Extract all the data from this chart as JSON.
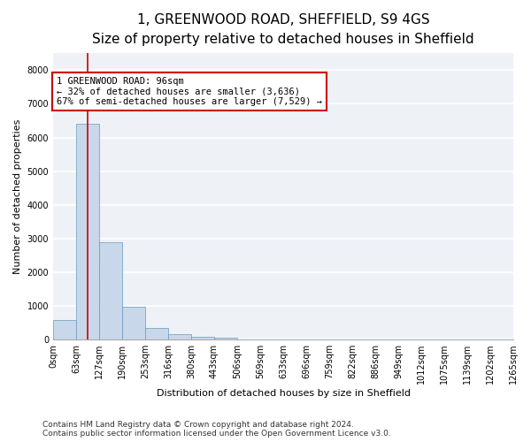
{
  "title": "1, GREENWOOD ROAD, SHEFFIELD, S9 4GS",
  "subtitle": "Size of property relative to detached houses in Sheffield",
  "xlabel": "Distribution of detached houses by size in Sheffield",
  "ylabel": "Number of detached properties",
  "bar_values": [
    590,
    6400,
    2900,
    970,
    350,
    155,
    80,
    50,
    5,
    3,
    2,
    1,
    0,
    0,
    0,
    0,
    0,
    0,
    0,
    0
  ],
  "bar_color": "#c8d8ea",
  "bar_edge_color": "#6699bb",
  "bar_width": 1.0,
  "x_labels": [
    "0sqm",
    "63sqm",
    "127sqm",
    "190sqm",
    "253sqm",
    "316sqm",
    "380sqm",
    "443sqm",
    "506sqm",
    "569sqm",
    "633sqm",
    "696sqm",
    "759sqm",
    "822sqm",
    "886sqm",
    "949sqm",
    "1012sqm",
    "1075sqm",
    "1139sqm",
    "1202sqm",
    "1265sqm"
  ],
  "ylim": [
    0,
    8500
  ],
  "yticks": [
    0,
    1000,
    2000,
    3000,
    4000,
    5000,
    6000,
    7000,
    8000
  ],
  "vline_color": "#cc0000",
  "annotation_text": "1 GREENWOOD ROAD: 96sqm\n← 32% of detached houses are smaller (3,636)\n67% of semi-detached houses are larger (7,529) →",
  "annotation_box_color": "#cc0000",
  "footer_line1": "Contains HM Land Registry data © Crown copyright and database right 2024.",
  "footer_line2": "Contains public sector information licensed under the Open Government Licence v3.0.",
  "background_color": "#eef2f7",
  "grid_color": "#ffffff",
  "title_fontsize": 11,
  "subtitle_fontsize": 9.5,
  "axis_label_fontsize": 8,
  "tick_fontsize": 7,
  "footer_fontsize": 6.5,
  "annotation_fontsize": 7.5
}
